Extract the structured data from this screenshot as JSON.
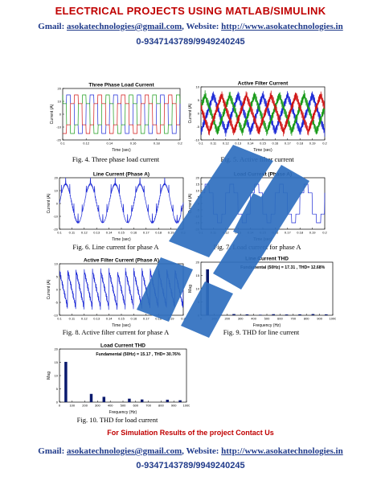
{
  "header": {
    "title": "ELECTRICAL PROJECTS USING MATLAB/SIMULINK",
    "gmail_label": "Gmail: ",
    "email": "asokatechnologies@gmail.com",
    "website_label": ", Website: ",
    "website": "http://www.asokatechnologies.in",
    "phone": "0-9347143789/9949240245"
  },
  "footer": {
    "simulation_note": "For Simulation Results of the project Contact Us",
    "gmail_label": "Gmail: ",
    "email": "asokatechnologies@gmail.com",
    "website_label": ", Website: ",
    "website": "http://www.asokatechnologies.in",
    "phone": "0-9347143789/9949240245"
  },
  "colors": {
    "title_red": "#c00000",
    "link_blue": "#1f3a8a",
    "trace_blue": "#1e2bd6",
    "bar_navy": "#0a1a6e",
    "watermark": "#2f6fbf"
  },
  "figures": [
    {
      "caption": "Fig. 4. Three phase load current"
    },
    {
      "caption": "Fig. 5. Active filter current"
    },
    {
      "caption": "Fig. 6. Line current for phase A"
    },
    {
      "caption": "Fig. 7. Load current for phase A"
    },
    {
      "caption": "Fig. 8. Active filter current for phase A"
    },
    {
      "caption": "Fig. 9. THD for line current"
    },
    {
      "caption": "Fig. 10. THD for load current"
    }
  ],
  "chart_data": [
    {
      "type": "line",
      "title": "Three Phase Load Current",
      "xlabel": "Time (sec)",
      "ylabel": "Current (A)",
      "xlim": [
        0.1,
        0.2
      ],
      "ylim": [
        -20,
        20
      ],
      "xticks": [
        "0.1",
        "0.12",
        "0.14",
        "0.16",
        "0.18",
        "0.2"
      ],
      "yticks": [
        "20",
        "10",
        "0",
        "-10",
        "-20"
      ],
      "series": [
        {
          "color": "#1e2bd6",
          "phase_deg": 0
        },
        {
          "color": "#1a9a1a",
          "phase_deg": 120
        },
        {
          "color": "#d01515",
          "phase_deg": 240
        }
      ],
      "waveform": "quasi-square",
      "amplitude": 15,
      "frequency_hz": 50
    },
    {
      "type": "line",
      "title": "Active Filter Current",
      "xlabel": "Time (sec)",
      "ylabel": "Current (A)",
      "xlim": [
        0.1,
        0.2
      ],
      "ylim": [
        -10,
        10
      ],
      "xticks": [
        "0.1",
        "0.11",
        "0.12",
        "0.13",
        "0.14",
        "0.15",
        "0.16",
        "0.17",
        "0.18",
        "0.19",
        "0.2"
      ],
      "yticks": [
        "10",
        "5",
        "0",
        "-5",
        "-10"
      ],
      "series": [
        {
          "color": "#1e2bd6",
          "phase_deg": 0
        },
        {
          "color": "#1a9a1a",
          "phase_deg": 120
        },
        {
          "color": "#d01515",
          "phase_deg": 240
        }
      ],
      "waveform": "noisy-triangle",
      "amplitude": 7,
      "frequency_hz": 50
    },
    {
      "type": "line",
      "title": "Line Current (Phase A)",
      "xlabel": "Time (sec)",
      "ylabel": "Current (A)",
      "xlim": [
        0.1,
        0.2
      ],
      "ylim": [
        -20,
        20
      ],
      "xticks": [
        "0.1",
        "0.11",
        "0.12",
        "0.13",
        "0.14",
        "0.15",
        "0.16",
        "0.17",
        "0.18",
        "0.19",
        "0.2"
      ],
      "yticks": [
        "20",
        "10",
        "0",
        "-10",
        "-20"
      ],
      "series": [
        {
          "color": "#1e2bd6"
        }
      ],
      "waveform": "sine-with-spikes",
      "amplitude": 15,
      "frequency_hz": 50
    },
    {
      "type": "line",
      "title": "Load Current (Phase A)",
      "xlabel": "Time (sec)",
      "ylabel": "Current (A)",
      "xlim": [
        0.1,
        0.2
      ],
      "ylim": [
        -20,
        20
      ],
      "xticks": [
        "0.1",
        "0.11",
        "0.12",
        "0.13",
        "0.14",
        "0.15",
        "0.16",
        "0.17",
        "0.18",
        "0.19",
        "0.2"
      ],
      "yticks": [
        "20",
        "15",
        "10",
        "5",
        "0",
        "-5",
        "-10",
        "-15",
        "-20"
      ],
      "series": [
        {
          "color": "#1e2bd6"
        }
      ],
      "waveform": "quasi-square",
      "amplitude": 15,
      "frequency_hz": 50
    },
    {
      "type": "line",
      "title": "Active Filter Current (Phase A)",
      "xlabel": "Time (sec)",
      "ylabel": "Current (A)",
      "xlim": [
        0.1,
        0.2
      ],
      "ylim": [
        -10,
        10
      ],
      "xticks": [
        "0.1",
        "0.11",
        "0.12",
        "0.13",
        "0.14",
        "0.15",
        "0.16",
        "0.17",
        "0.18",
        "0.19",
        "0.2"
      ],
      "yticks": [
        "10",
        "5",
        "0",
        "-5",
        "-10"
      ],
      "series": [
        {
          "color": "#1e2bd6"
        }
      ],
      "waveform": "noisy-sawtooth",
      "amplitude": 8,
      "frequency_hz": 50
    },
    {
      "type": "bar",
      "title": "Line Current THD",
      "annotation": "Fundamental (50Hz) = 17.31 , THD= 12.68%",
      "xlabel": "Frequency (Hz)",
      "ylabel": "Mag",
      "xlim": [
        0,
        1000
      ],
      "ylim": [
        0,
        20
      ],
      "xticks": [
        "0",
        "100",
        "200",
        "300",
        "400",
        "500",
        "600",
        "700",
        "800",
        "900",
        "1000"
      ],
      "yticks": [
        "20",
        "15",
        "10",
        "5",
        "0"
      ],
      "x": [
        50,
        150,
        250,
        350,
        450,
        550,
        650,
        750,
        850,
        950
      ],
      "values": [
        17.31,
        0.15,
        0.45,
        0.35,
        0.2,
        0.4,
        0.3,
        0.35,
        0.45,
        0.35
      ]
    },
    {
      "type": "bar",
      "title": "Load Current THD",
      "annotation": "Fundamental (50Hz) = 15.17 , THD= 30.76%",
      "xlabel": "Frequency (Hz)",
      "ylabel": "Mag",
      "xlim": [
        0,
        1000
      ],
      "ylim": [
        0,
        20
      ],
      "xticks": [
        "0",
        "100",
        "200",
        "300",
        "400",
        "500",
        "600",
        "700",
        "800",
        "900",
        "1000"
      ],
      "yticks": [
        "20",
        "15",
        "10",
        "5",
        "0"
      ],
      "x": [
        50,
        250,
        350,
        550,
        650,
        850,
        950
      ],
      "values": [
        15.17,
        3.1,
        2.0,
        1.3,
        1.0,
        0.9,
        0.7
      ]
    }
  ]
}
